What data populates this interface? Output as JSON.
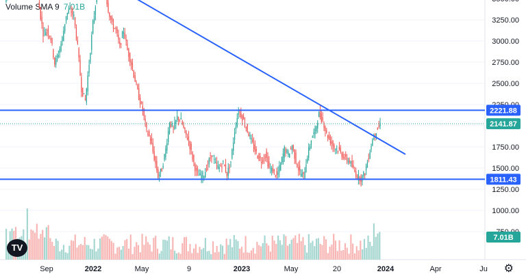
{
  "indicator": {
    "label": "Volume SMA 9",
    "value": "7.01B"
  },
  "colors": {
    "up": "#26a69a",
    "down": "#ef5350",
    "trendline": "#2962ff",
    "vol_up": "#a5d6d0",
    "vol_down": "#f7b6b4"
  },
  "chart_data": {
    "type": "candlestick",
    "y_ticks": [
      "3500.00",
      "3250.00",
      "3000.00",
      "2750.00",
      "2500.00",
      "2250.00",
      "2000.00",
      "1750.00",
      "1500.00",
      "1250.00",
      "1000.00",
      "750.00"
    ],
    "x_ticks": [
      {
        "label": "Sep",
        "bold": false
      },
      {
        "label": "2022",
        "bold": true
      },
      {
        "label": "May",
        "bold": false
      },
      {
        "label": "9",
        "bold": false
      },
      {
        "label": "2023",
        "bold": true
      },
      {
        "label": "May",
        "bold": false
      },
      {
        "label": "20",
        "bold": false
      },
      {
        "label": "2024",
        "bold": true
      },
      {
        "label": "Apr",
        "bold": false
      },
      {
        "label": "Ju",
        "bold": false
      }
    ],
    "levels": [
      {
        "value": 2221.88,
        "label": "2221.88",
        "bg": "#2962ff"
      },
      {
        "value": 2141.87,
        "label": "2141.87",
        "bg": "#26a69a"
      },
      {
        "value": 1811.43,
        "label": "1811.43",
        "bg": "#2962ff"
      }
    ],
    "volume_label": "7.01B",
    "trendline": {
      "from": 3260,
      "to": 1960
    },
    "price_path": [
      2850,
      2980,
      3050,
      2900,
      3000,
      3160,
      3210,
      3100,
      3000,
      2830,
      2680,
      2700,
      2650,
      2500,
      2560,
      2650,
      2790,
      2820,
      2780,
      2600,
      2350,
      2280,
      2500,
      2740,
      2900,
      2990,
      2960,
      2820,
      2730,
      2700,
      2600,
      2700,
      2580,
      2500,
      2400,
      2300,
      2220,
      2100,
      2050,
      1940,
      1830,
      1870,
      1990,
      2150,
      2110,
      2180,
      2160,
      2090,
      2040,
      1940,
      1850,
      1830,
      1840,
      1900,
      1960,
      1900,
      1880,
      1910,
      1840,
      1920,
      2100,
      2220,
      2180,
      2120,
      2060,
      2000,
      1950,
      1920,
      1960,
      1880,
      1860,
      1830,
      1900,
      1990,
      1960,
      2010,
      1920,
      1850,
      1830,
      1950,
      2050,
      2100,
      2200,
      2160,
      2080,
      2040,
      2000,
      1990,
      1960,
      1930,
      1920,
      1870,
      1830,
      1815,
      1850,
      1950,
      2050,
      2100,
      2140
    ]
  },
  "icons": {
    "settings": "gear-icon",
    "logo": "tradingview-logo"
  }
}
